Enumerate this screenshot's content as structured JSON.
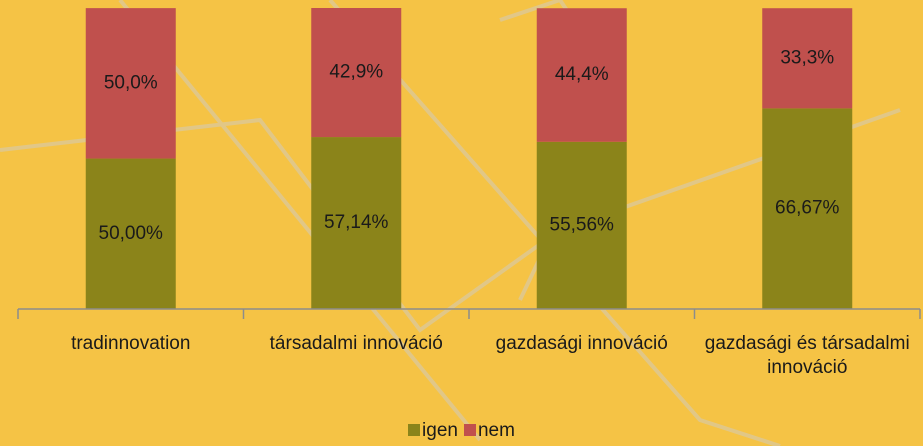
{
  "chart_data": {
    "type": "stacked_bar",
    "categories": [
      "tradinnovation",
      "társadalmi innováció",
      "gazdasági innováció",
      "gazdasági és társadalmi innováció"
    ],
    "series": [
      {
        "name": "igen",
        "color": "#8b841a",
        "values": [
          50.0,
          57.14,
          55.56,
          66.67
        ],
        "value_labels": [
          "50,00%",
          "57,14%",
          "55,56%",
          "66,67%"
        ]
      },
      {
        "name": "nem",
        "color": "#c0504d",
        "values": [
          50.0,
          42.9,
          44.4,
          33.3
        ],
        "value_labels": [
          "50,0%",
          "42,9%",
          "44,4%",
          "33,3%"
        ]
      }
    ]
  }
}
